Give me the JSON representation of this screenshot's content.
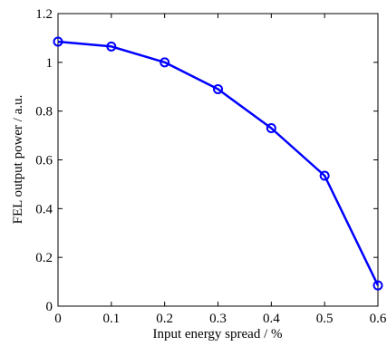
{
  "chart_data": {
    "type": "line",
    "title": "",
    "xlabel": "Input energy spread / %",
    "ylabel": "FEL output power / a.u.",
    "xlim": [
      0,
      0.6
    ],
    "ylim": [
      0,
      1.2
    ],
    "xticks": [
      "0",
      "0.1",
      "0.2",
      "0.3",
      "0.4",
      "0.5",
      "0.6"
    ],
    "yticks": [
      "0",
      "0.2",
      "0.4",
      "0.6",
      "0.8",
      "1",
      "1.2"
    ],
    "grid": false,
    "series": [
      {
        "color": "#0000ff",
        "marker": "circle",
        "x": [
          0,
          0.1,
          0.2,
          0.3,
          0.4,
          0.5,
          0.6
        ],
        "y": [
          1.085,
          1.065,
          1.0,
          0.89,
          0.73,
          0.535,
          0.085
        ]
      }
    ]
  }
}
